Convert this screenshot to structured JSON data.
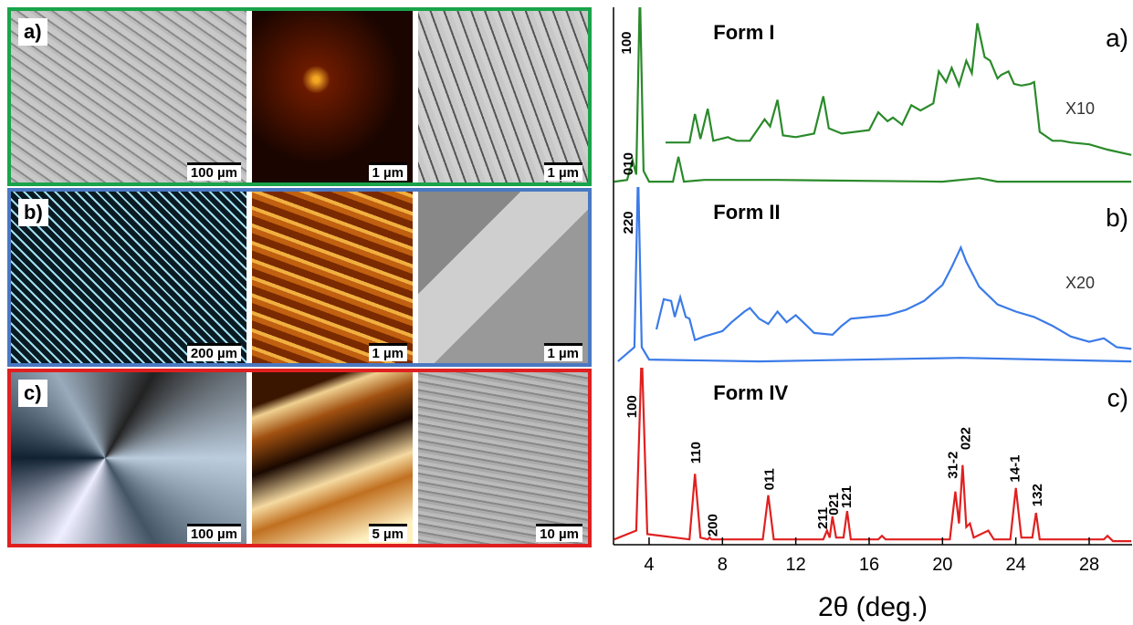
{
  "images": {
    "rows": [
      {
        "label": "a)",
        "scale_bars": [
          "100 µm",
          "1 µm",
          "1 µm"
        ]
      },
      {
        "label": "b)",
        "scale_bars": [
          "200 µm",
          "1 µm",
          "1 µm"
        ]
      },
      {
        "label": "c)",
        "scale_bars": [
          "100 µm",
          "5 µm",
          "10 µm"
        ]
      }
    ]
  },
  "chart_data": [
    {
      "type": "line",
      "title": "Form I",
      "panel_label": "a)",
      "xlim": [
        2.06,
        30.34
      ],
      "ylim": [
        0,
        100
      ],
      "series": [
        {
          "name": "Form I",
          "color": "#2a8a2a",
          "x": [
            2.1,
            2.8,
            3.1,
            3.3,
            3.5,
            3.7,
            4,
            5.3,
            5.6,
            5.9,
            7,
            11,
            20,
            22,
            23,
            30.3
          ],
          "values": [
            2,
            3,
            14,
            6,
            110,
            8,
            2,
            2,
            16,
            2,
            3,
            3,
            2,
            4,
            2,
            2
          ]
        },
        {
          "name": "X10",
          "color": "#2a8a2a",
          "x": [
            4.9,
            6.2,
            6.5,
            6.8,
            7.2,
            7.5,
            8.3,
            8.5,
            8.8,
            9.5,
            10.3,
            10.6,
            11,
            11.3,
            12,
            13,
            13.5,
            13.8,
            14.5,
            16,
            16.5,
            17,
            17.3,
            17.8,
            18.3,
            18.8,
            19.5,
            19.8,
            20.2,
            20.5,
            20.9,
            21.3,
            21.6,
            21.9,
            22.3,
            22.6,
            23,
            23.2,
            23.6,
            23.9,
            24.3,
            24.8,
            25,
            25.3,
            26,
            26.5,
            27,
            28,
            29,
            30.3
          ],
          "values": [
            24,
            24,
            40,
            26,
            43,
            25,
            27,
            26,
            25,
            25,
            37,
            33,
            48,
            28,
            27,
            29,
            50,
            32,
            29,
            31,
            41,
            36,
            38,
            34,
            45,
            42,
            46,
            64,
            58,
            66,
            56,
            70,
            63,
            91,
            72,
            70,
            60,
            62,
            64,
            57,
            56,
            57,
            58,
            30,
            25,
            25,
            24,
            23,
            20,
            17
          ]
        }
      ],
      "annotations": [
        {
          "text": "100",
          "x": 2.7,
          "y": 80
        },
        {
          "text": "010",
          "x": 2.8,
          "y": 12
        },
        {
          "text": "X10",
          "x": 27.5,
          "y": 40
        }
      ]
    },
    {
      "type": "line",
      "title": "Form II",
      "panel_label": "b)",
      "xlim": [
        2.06,
        30.34
      ],
      "ylim": [
        0,
        100
      ],
      "series": [
        {
          "name": "Form II",
          "color": "#3b7be8",
          "x": [
            2.3,
            3.2,
            3.4,
            3.6,
            4,
            10,
            21,
            30.3
          ],
          "values": [
            2,
            10,
            110,
            10,
            3,
            2,
            4,
            2
          ]
        },
        {
          "name": "X20",
          "color": "#3b7be8",
          "x": [
            4.4,
            4.8,
            5.2,
            5.4,
            5.7,
            6,
            6.2,
            6.5,
            7,
            8,
            8.5,
            9.2,
            9.5,
            10,
            10.5,
            11,
            11.5,
            12,
            12.5,
            13,
            14,
            14.5,
            15,
            16,
            17,
            18,
            19,
            20,
            20.5,
            21,
            21.3,
            22,
            23,
            24,
            25,
            26,
            27,
            28,
            28.8,
            29.5,
            30.3
          ],
          "values": [
            20,
            37,
            36,
            27,
            38,
            27,
            26,
            14,
            16,
            19,
            24,
            30,
            32,
            26,
            23,
            30,
            24,
            28,
            23,
            18,
            17,
            22,
            26,
            27,
            28,
            31,
            36,
            45,
            55,
            66,
            58,
            44,
            34,
            30,
            27,
            22,
            16,
            13,
            15,
            10,
            9
          ]
        }
      ],
      "annotations": [
        {
          "text": "220",
          "x": 2.8,
          "y": 80
        },
        {
          "text": "X20",
          "x": 27.5,
          "y": 43
        }
      ]
    },
    {
      "type": "line",
      "title": "Form IV",
      "panel_label": "c)",
      "xlim": [
        2.06,
        30.34
      ],
      "ylim": [
        0,
        100
      ],
      "xticks": [
        4,
        8,
        12,
        16,
        20,
        24,
        28
      ],
      "xlabel": "2θ (deg.)",
      "series": [
        {
          "name": "Form IV",
          "color": "#e02020",
          "x": [
            2.1,
            3.3,
            3.6,
            3.9,
            6.2,
            6.5,
            6.8,
            7.2,
            7.3,
            7.4,
            10.2,
            10.5,
            10.8,
            13.5,
            13.7,
            13.85,
            14,
            14.2,
            14.6,
            14.8,
            15,
            16.5,
            16.7,
            16.9,
            20.4,
            20.7,
            20.9,
            21.1,
            21.3,
            21.5,
            21.7,
            22.5,
            22.8,
            23.7,
            24,
            24.3,
            24.9,
            25.1,
            25.3,
            28.8,
            29,
            29.3,
            30.3
          ],
          "values": [
            3,
            8,
            110,
            6,
            3,
            40,
            4,
            3,
            4,
            3,
            3,
            28,
            3,
            3,
            8,
            4,
            16,
            4,
            4,
            19,
            3,
            3,
            5,
            3,
            3,
            30,
            12,
            45,
            10,
            12,
            4,
            8,
            3,
            3,
            32,
            4,
            4,
            18,
            3,
            3,
            5,
            2,
            2
          ]
        }
      ],
      "annotations": [
        {
          "text": "100",
          "x": 3.0,
          "y": 78
        },
        {
          "text": "110",
          "x": 6.5,
          "y": 52
        },
        {
          "text": "200",
          "x": 7.4,
          "y": 11
        },
        {
          "text": "011",
          "x": 10.5,
          "y": 37
        },
        {
          "text": "211",
          "x": 13.4,
          "y": 15
        },
        {
          "text": "021",
          "x": 14.0,
          "y": 23
        },
        {
          "text": "121",
          "x": 14.7,
          "y": 27
        },
        {
          "text": "31-2",
          "x": 20.5,
          "y": 45
        },
        {
          "text": "022",
          "x": 21.2,
          "y": 60
        },
        {
          "text": "14-1",
          "x": 23.9,
          "y": 43
        },
        {
          "text": "132",
          "x": 25.1,
          "y": 28
        }
      ]
    }
  ]
}
